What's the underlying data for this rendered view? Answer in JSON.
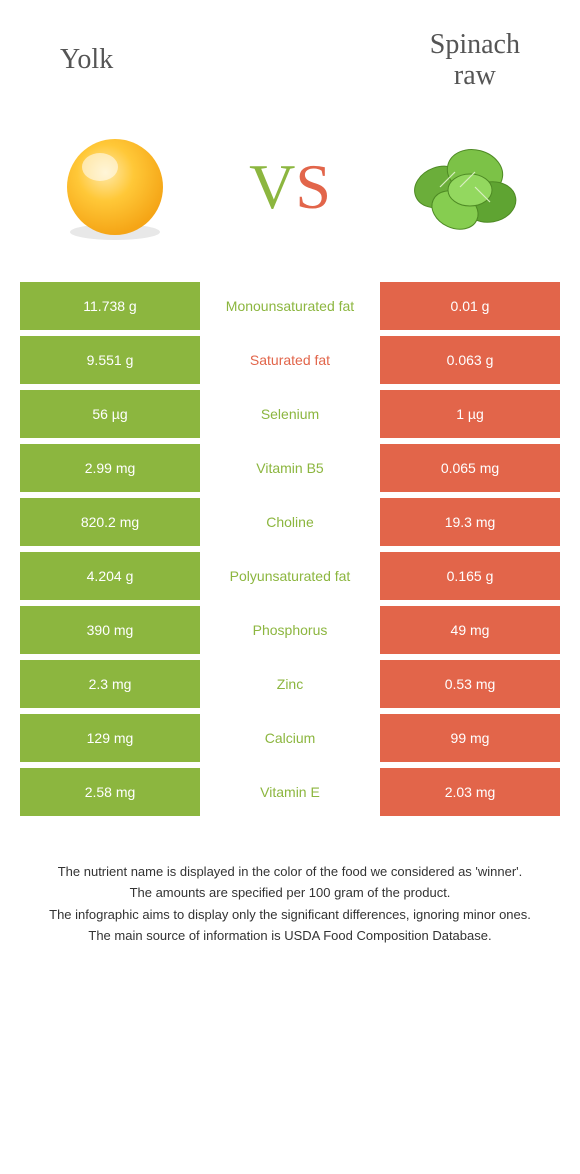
{
  "header": {
    "left_title": "Yolk",
    "right_title_line1": "Spinach",
    "right_title_line2": "raw"
  },
  "vs": {
    "v_letter": "V",
    "s_letter": "S",
    "left_color": "#8cb63f",
    "right_color": "#e2654a"
  },
  "colors": {
    "left_bg": "#8cb63f",
    "right_bg": "#e2654a",
    "left_text": "#8cb63f",
    "right_text": "#e2654a"
  },
  "rows": [
    {
      "left": "11.738 g",
      "label": "Monounsaturated fat",
      "right": "0.01 g",
      "winner": "left"
    },
    {
      "left": "9.551 g",
      "label": "Saturated fat",
      "right": "0.063 g",
      "winner": "right"
    },
    {
      "left": "56 µg",
      "label": "Selenium",
      "right": "1 µg",
      "winner": "left"
    },
    {
      "left": "2.99 mg",
      "label": "Vitamin B5",
      "right": "0.065 mg",
      "winner": "left"
    },
    {
      "left": "820.2 mg",
      "label": "Choline",
      "right": "19.3 mg",
      "winner": "left"
    },
    {
      "left": "4.204 g",
      "label": "Polyunsaturated fat",
      "right": "0.165 g",
      "winner": "left"
    },
    {
      "left": "390 mg",
      "label": "Phosphorus",
      "right": "49 mg",
      "winner": "left"
    },
    {
      "left": "2.3 mg",
      "label": "Zinc",
      "right": "0.53 mg",
      "winner": "left"
    },
    {
      "left": "129 mg",
      "label": "Calcium",
      "right": "99 mg",
      "winner": "left"
    },
    {
      "left": "2.58 mg",
      "label": "Vitamin E",
      "right": "2.03 mg",
      "winner": "left"
    }
  ],
  "footnotes": [
    "The nutrient name is displayed in the color of the food we considered as 'winner'.",
    "The amounts are specified per 100 gram of the product.",
    "The infographic aims to display only the significant differences, ignoring minor ones.",
    "The main source of information is USDA Food Composition Database."
  ]
}
